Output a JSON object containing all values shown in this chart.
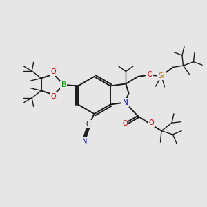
{
  "background_color": "#e6e6e6",
  "figsize": [
    3.0,
    3.0
  ],
  "dpi": 100,
  "bond_color": "#1a1a1a",
  "lw": 1.4,
  "lw_thin": 1.0,
  "atom_colors": {
    "B": "#009900",
    "O": "#dd0000",
    "N": "#0000cc",
    "Si": "#bb7700",
    "C": "#1a1a1a"
  },
  "font_size": 7.0,
  "font_size_small": 5.5
}
